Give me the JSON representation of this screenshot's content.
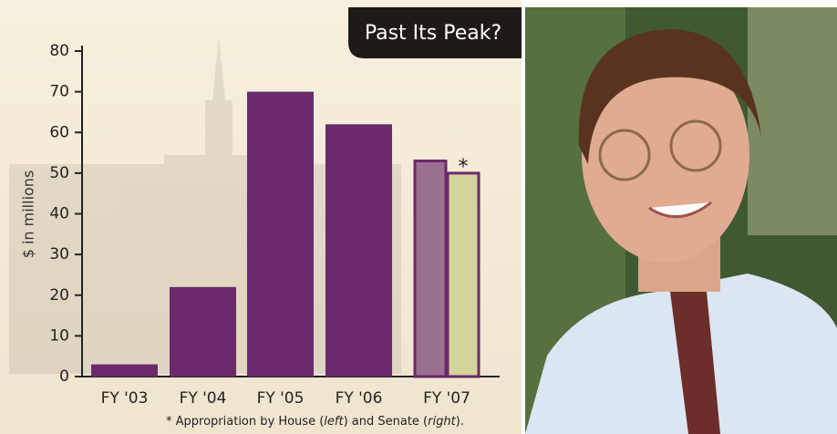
{
  "chart_data": {
    "type": "bar",
    "title": "Past Its Peak?",
    "y_label": "$ in millions",
    "categories": [
      "FY '03",
      "FY '04",
      "FY '05",
      "FY '06",
      "FY '07"
    ],
    "series": [
      {
        "color": "#6a2a6c",
        "colors": [
          "#6a2a6c",
          "#6a2a6c",
          "#6a2a6c",
          "#6a2a6c",
          "#9b6f8f"
        ],
        "values": [
          3,
          22,
          70,
          62,
          53
        ]
      },
      {
        "color": "#d3d39c",
        "values": [
          null,
          null,
          null,
          null,
          50
        ]
      }
    ],
    "annotation": "*",
    "footnote": [
      "* Appropriation by House (",
      "left",
      ") and Senate (",
      "right",
      ")."
    ],
    "ylim": [
      0,
      80
    ],
    "yticks": [
      0,
      10,
      20,
      30,
      40,
      50,
      60,
      70,
      80
    ]
  }
}
